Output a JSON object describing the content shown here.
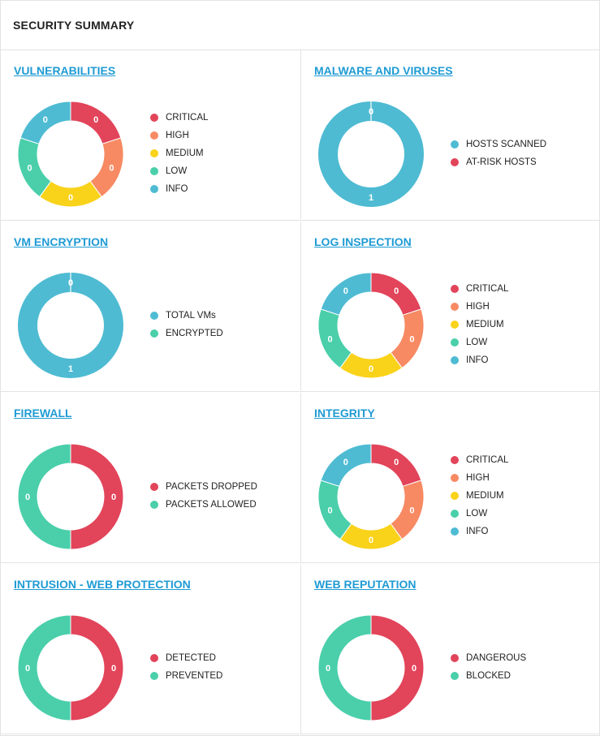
{
  "header": {
    "title": "SECURITY SUMMARY"
  },
  "colors": {
    "critical": "#e2445a",
    "high": "#f78a63",
    "medium": "#f9d21a",
    "low": "#4acfaa",
    "info": "#4ebbd3"
  },
  "widgets": [
    {
      "id": "vulnerabilities",
      "title": "VULNERABILITIES",
      "mode": "equal",
      "series": [
        {
          "label": "CRITICAL",
          "value": 0,
          "color": "#e2445a"
        },
        {
          "label": "HIGH",
          "value": 0,
          "color": "#f78a63"
        },
        {
          "label": "MEDIUM",
          "value": 0,
          "color": "#f9d21a"
        },
        {
          "label": "LOW",
          "value": 0,
          "color": "#4acfaa"
        },
        {
          "label": "INFO",
          "value": 0,
          "color": "#4ebbd3"
        }
      ]
    },
    {
      "id": "malware",
      "title": "MALWARE AND VIRUSES",
      "mode": "proportional",
      "series": [
        {
          "label": "HOSTS SCANNED",
          "value": 1,
          "color": "#4ebbd3"
        },
        {
          "label": "AT-RISK HOSTS",
          "value": 0,
          "color": "#e2445a"
        }
      ]
    },
    {
      "id": "vm-encryption",
      "title": "VM ENCRYPTION",
      "mode": "proportional",
      "series": [
        {
          "label": "TOTAL VMs",
          "value": 1,
          "color": "#4ebbd3"
        },
        {
          "label": "ENCRYPTED",
          "value": 0,
          "color": "#4acfaa"
        }
      ]
    },
    {
      "id": "log-inspection",
      "title": "LOG INSPECTION",
      "mode": "equal",
      "series": [
        {
          "label": "CRITICAL",
          "value": 0,
          "color": "#e2445a"
        },
        {
          "label": "HIGH",
          "value": 0,
          "color": "#f78a63"
        },
        {
          "label": "MEDIUM",
          "value": 0,
          "color": "#f9d21a"
        },
        {
          "label": "LOW",
          "value": 0,
          "color": "#4acfaa"
        },
        {
          "label": "INFO",
          "value": 0,
          "color": "#4ebbd3"
        }
      ]
    },
    {
      "id": "firewall",
      "title": "FIREWALL",
      "mode": "equal",
      "series": [
        {
          "label": "PACKETS DROPPED",
          "value": 0,
          "color": "#e2445a"
        },
        {
          "label": "PACKETS ALLOWED",
          "value": 0,
          "color": "#4acfaa"
        }
      ]
    },
    {
      "id": "integrity",
      "title": "INTEGRITY",
      "mode": "equal",
      "series": [
        {
          "label": "CRITICAL",
          "value": 0,
          "color": "#e2445a"
        },
        {
          "label": "HIGH",
          "value": 0,
          "color": "#f78a63"
        },
        {
          "label": "MEDIUM",
          "value": 0,
          "color": "#f9d21a"
        },
        {
          "label": "LOW",
          "value": 0,
          "color": "#4acfaa"
        },
        {
          "label": "INFO",
          "value": 0,
          "color": "#4ebbd3"
        }
      ]
    },
    {
      "id": "intrusion",
      "title": "INTRUSION - WEB PROTECTION",
      "mode": "equal",
      "series": [
        {
          "label": "DETECTED",
          "value": 0,
          "color": "#e2445a"
        },
        {
          "label": "PREVENTED",
          "value": 0,
          "color": "#4acfaa"
        }
      ]
    },
    {
      "id": "web-reputation",
      "title": "WEB REPUTATION",
      "mode": "equal",
      "series": [
        {
          "label": "DANGEROUS",
          "value": 0,
          "color": "#e2445a"
        },
        {
          "label": "BLOCKED",
          "value": 0,
          "color": "#4acfaa"
        }
      ]
    }
  ]
}
